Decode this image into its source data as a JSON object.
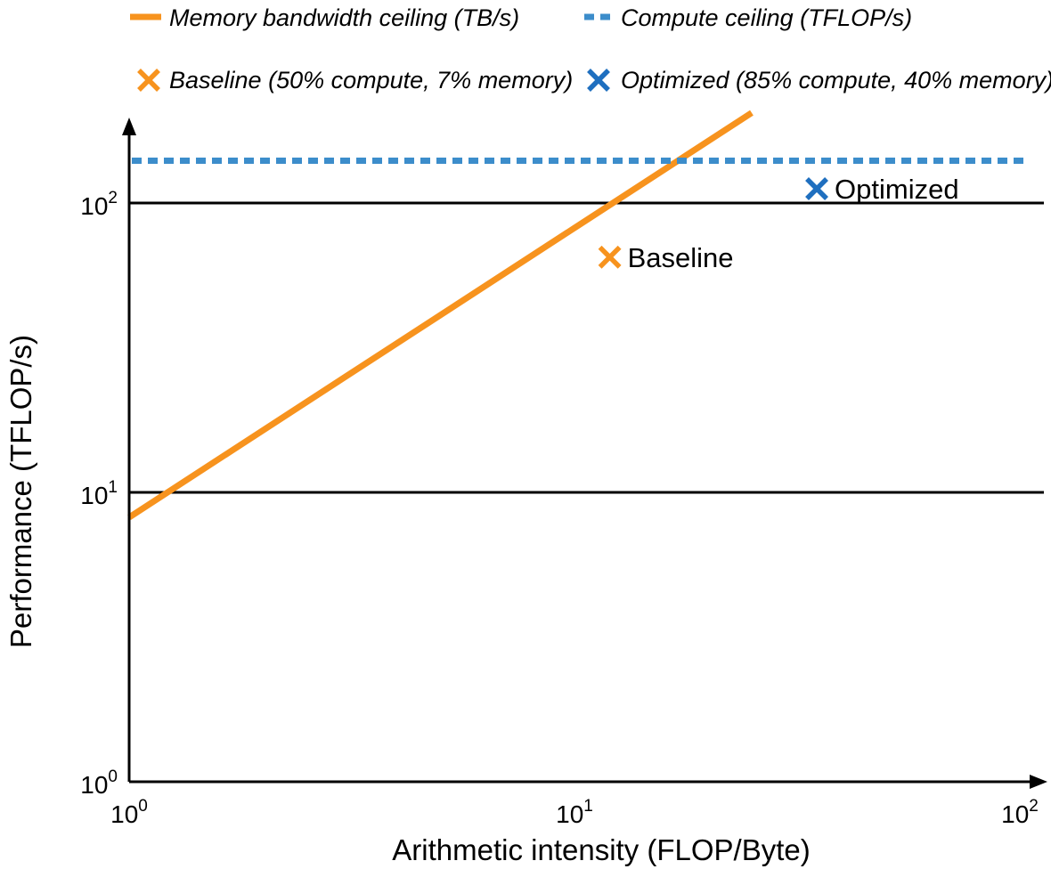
{
  "chart_data": {
    "type": "line",
    "title": "",
    "xlabel": "Arithmetic intensity  (FLOP/Byte)",
    "ylabel": "Performance (TFLOP/s)",
    "xscale": "log",
    "yscale": "log",
    "xlim": [
      1,
      100
    ],
    "ylim": [
      1,
      180
    ],
    "grid": "horizontal lines at 10 and 100",
    "x_ticks": [
      {
        "value": 1,
        "base": "10",
        "exp": "0"
      },
      {
        "value": 10,
        "base": "10",
        "exp": "1"
      },
      {
        "value": 100,
        "base": "10",
        "exp": "2"
      }
    ],
    "y_ticks": [
      {
        "value": 1,
        "base": "10",
        "exp": "0"
      },
      {
        "value": 10,
        "base": "10",
        "exp": "1"
      },
      {
        "value": 100,
        "base": "10",
        "exp": "2"
      }
    ],
    "legend_position": "top",
    "series": [
      {
        "name": "Memory bandwidth ceiling (TB/s)",
        "kind": "line",
        "style": "solid",
        "color": "#F7931E",
        "x": [
          1,
          25
        ],
        "y": [
          8.2,
          205
        ]
      },
      {
        "name": "Compute ceiling (TFLOP/s)",
        "kind": "line",
        "style": "dashed",
        "color": "#3C8DCB",
        "x": [
          1,
          100
        ],
        "y": [
          140,
          140
        ]
      }
    ],
    "points": [
      {
        "legend": "Baseline (50% compute, 7% memory)",
        "label": "Baseline",
        "x": 12,
        "y": 65,
        "color": "#F7931E"
      },
      {
        "legend": "Optimized (85% compute, 40% memory)",
        "label": "Optimized",
        "x": 35,
        "y": 112,
        "color": "#1F6FBF"
      }
    ]
  }
}
